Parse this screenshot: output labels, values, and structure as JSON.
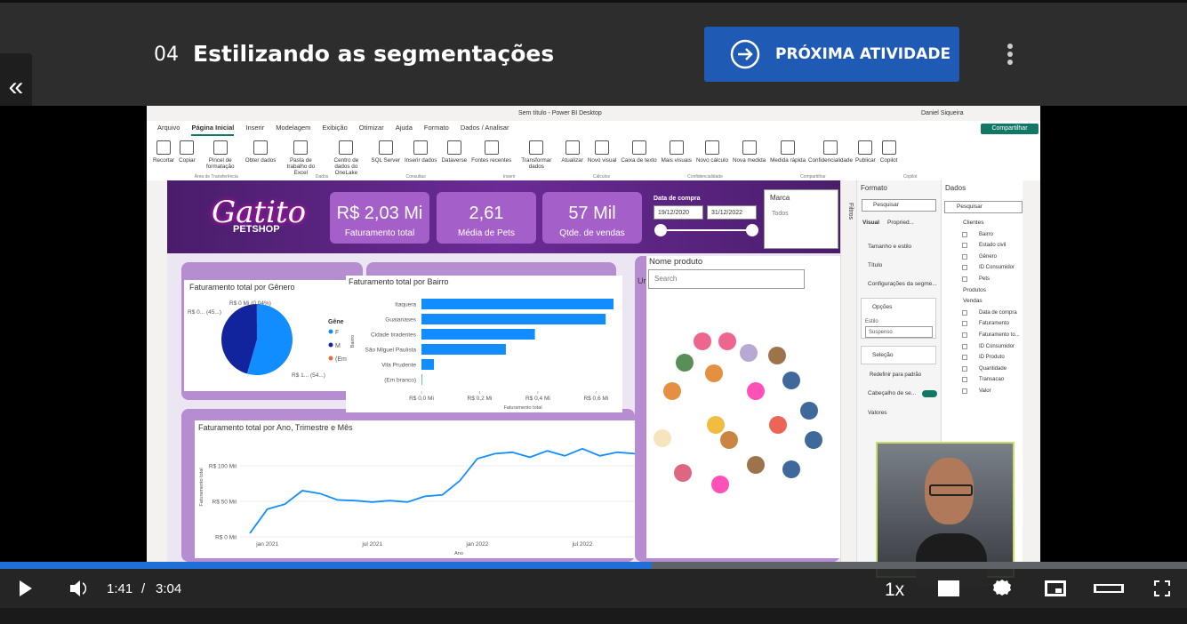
{
  "header": {
    "back_button": "«",
    "lesson_number": "04",
    "title": "Estilizando as segmentações",
    "next_button": "PRÓXIMA ATIVIDADE"
  },
  "app": {
    "window_title": "Sem título - Power BI Desktop",
    "user": "Daniel Siqueira",
    "share": "Compartilhar",
    "tabs": [
      "Arquivo",
      "Página Inicial",
      "Inserir",
      "Modelagem",
      "Exibição",
      "Otimizar",
      "Ajuda",
      "Formato",
      "Dados / Analisar"
    ],
    "ribbon": [
      "Recortar",
      "Copiar",
      "Pincel de formatação",
      "Obter dados",
      "Pasta de trabalho do Excel",
      "Centro de dados do OneLake",
      "SQL Server",
      "Inserir dados",
      "Dataverse",
      "Fontes recentes",
      "Transformar dados",
      "Atualizar",
      "Novo visual",
      "Caixa de texto",
      "Mais visuais",
      "Novo cálculo",
      "Nova medida",
      "Medida rápida",
      "Confidencialidade",
      "Publicar",
      "Copilot"
    ],
    "ribbon_groups": [
      "Área de Transferência",
      "Dados",
      "Consultas",
      "Inserir",
      "Cálculos",
      "Confidencialidade",
      "Compartilhar",
      "Copilot"
    ]
  },
  "report": {
    "logo": "Gatito",
    "logo_sub": "PETSHOP",
    "kpis": [
      {
        "value": "R$ 2,03 Mi",
        "label": "Faturamento total"
      },
      {
        "value": "2,61",
        "label": "Média de Pets"
      },
      {
        "value": "57 Mil",
        "label": "Qtde. de vendas"
      }
    ],
    "date_slicer": {
      "title": "Data de compra",
      "start": "19/12/2020",
      "end": "31/12/2022"
    },
    "brand_slicer": {
      "title": "Marca",
      "value": "Todos"
    },
    "product_slicer": {
      "title": "Nome produto",
      "placeholder": "Search"
    },
    "partial_title": "Ur",
    "pie": {
      "title": "Faturamento total por Gênero",
      "legend_title": "Gêne",
      "series": [
        {
          "name": "F",
          "color": "#118dff",
          "value": 54.5,
          "value_label": "R$ 1... (54...)"
        },
        {
          "name": "M",
          "color": "#12239e",
          "value": 45.46,
          "value_label": "R$ 0... (45...)"
        },
        {
          "name": "(Em",
          "color": "#e66c37",
          "value": 0.04,
          "value_label": "R$ 0 Mi (0,04%)"
        }
      ]
    },
    "bar": {
      "title": "Faturamento total por Bairro",
      "y_axis_label": "Bairro",
      "x_axis_label": "Faturamento total",
      "color": "#118dff",
      "categories": [
        "Itaquera",
        "Guaianases",
        "Cidade tiradentes",
        "São Miguel Paulista",
        "Vila Prudente",
        "(Em branco)"
      ],
      "values": [
        0.66,
        0.633,
        0.39,
        0.29,
        0.043,
        0.002
      ],
      "xlim": [
        0,
        0.66
      ],
      "xticks": [
        {
          "value": 0,
          "label": "R$ 0,0 Mi"
        },
        {
          "value": 0.2,
          "label": "R$ 0,2 Mi"
        },
        {
          "value": 0.4,
          "label": "R$ 0,4 Mi"
        },
        {
          "value": 0.6,
          "label": "R$ 0,6 Mi"
        }
      ]
    },
    "line": {
      "title": "Faturamento total por Ano, Trimestre e Mês",
      "y_axis_label": "Faturamento total",
      "x_axis_label": "Ano",
      "color": "#118dff",
      "categories": [
        null,
        "jan 2021",
        null,
        null,
        null,
        null,
        null,
        "jul 2021",
        null,
        null,
        null,
        null,
        null,
        "jan 2022",
        null,
        null,
        null,
        null,
        null,
        "jul 2022",
        null,
        null,
        null
      ],
      "values": [
        5,
        39,
        46,
        65,
        61,
        52,
        51,
        49,
        51,
        49,
        57,
        59,
        79,
        110,
        117,
        119,
        112,
        121,
        114,
        124,
        114,
        119,
        117
      ],
      "ylim": [
        0,
        130
      ],
      "yticks": [
        {
          "value": 0,
          "label": "R$ 0 Mil"
        },
        {
          "value": 50,
          "label": "R$ 50 Mil"
        },
        {
          "value": 100,
          "label": "R$ 100 Mil"
        }
      ]
    }
  },
  "format_pane": {
    "title": "Formato",
    "search": "Pesquisar",
    "tab_visual": "Visual",
    "tab_props": "Propried...",
    "items": [
      "Tamanho e estilo",
      "Título",
      "Configurações da segme..."
    ],
    "options": "Opções",
    "style_label": "Estilo",
    "style_value": "Suspenso",
    "selection": "Seleção",
    "reset": "Redefinir para padrão",
    "header": "Cabeçalho de se...",
    "values": "Valores",
    "filters": "Filtros"
  },
  "data_pane": {
    "title": "Dados",
    "search": "Pesquisar",
    "tables": [
      {
        "name": "Clientes",
        "fields": [
          "Bairro",
          "Estado civil",
          "Gênero",
          "ID Consumidor",
          "Pets"
        ]
      },
      {
        "name": "Produtos",
        "fields": []
      },
      {
        "name": "Vendas",
        "fields": [
          "Data de compra",
          "Faturamento",
          "Faturamento to...",
          "ID Consumidor",
          "ID Produto",
          "Quantidade",
          "Transacao",
          "Valor"
        ]
      }
    ]
  },
  "player": {
    "current": "1:41",
    "separator": "/",
    "duration": "3:04",
    "speed": "1x"
  }
}
